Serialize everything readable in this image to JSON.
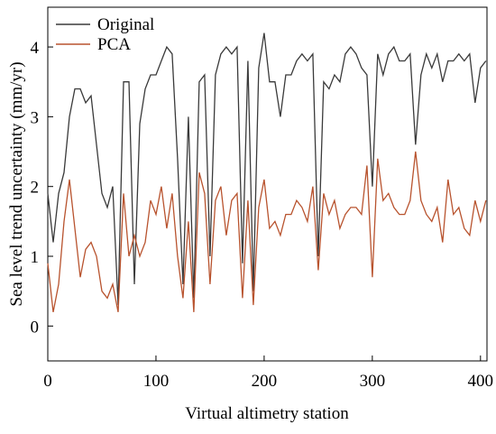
{
  "chart_data": {
    "type": "line",
    "xlabel": "Virtual altimetry station",
    "ylabel": "Sea level trend uncertainty (mm/yr)",
    "x": [
      0,
      5,
      10,
      15,
      20,
      25,
      30,
      35,
      40,
      45,
      50,
      55,
      60,
      65,
      70,
      75,
      80,
      85,
      90,
      95,
      100,
      105,
      110,
      115,
      120,
      125,
      130,
      135,
      140,
      145,
      150,
      155,
      160,
      165,
      170,
      175,
      180,
      185,
      190,
      195,
      200,
      205,
      210,
      215,
      220,
      225,
      230,
      235,
      240,
      245,
      250,
      255,
      260,
      265,
      270,
      275,
      280,
      285,
      290,
      295,
      300,
      305,
      310,
      315,
      320,
      325,
      330,
      335,
      340,
      345,
      350,
      355,
      360,
      365,
      370,
      375,
      380,
      385,
      390,
      395,
      400,
      405
    ],
    "series": [
      {
        "name": "Original",
        "color": "#3a3a3a",
        "values": [
          1.9,
          1.2,
          1.9,
          2.2,
          3.0,
          3.4,
          3.4,
          3.2,
          3.3,
          2.6,
          1.9,
          1.7,
          2.0,
          0.3,
          3.5,
          3.5,
          0.6,
          2.9,
          3.4,
          3.6,
          3.6,
          3.8,
          4.0,
          3.9,
          2.4,
          0.6,
          3.0,
          0.4,
          3.5,
          3.6,
          1.0,
          3.6,
          3.9,
          4.0,
          3.9,
          4.0,
          0.9,
          3.8,
          0.5,
          3.7,
          4.2,
          3.5,
          3.5,
          3.0,
          3.6,
          3.6,
          3.8,
          3.9,
          3.8,
          3.9,
          1.0,
          3.5,
          3.4,
          3.6,
          3.5,
          3.9,
          4.0,
          3.9,
          3.7,
          3.6,
          2.0,
          3.9,
          3.6,
          3.9,
          4.0,
          3.8,
          3.8,
          3.9,
          2.6,
          3.6,
          3.9,
          3.7,
          3.9,
          3.5,
          3.8,
          3.8,
          3.9,
          3.8,
          3.9,
          3.2,
          3.7,
          3.8
        ]
      },
      {
        "name": "PCA",
        "color": "#b8532e",
        "values": [
          0.9,
          0.2,
          0.6,
          1.5,
          2.1,
          1.4,
          0.7,
          1.1,
          1.2,
          1.0,
          0.5,
          0.4,
          0.6,
          0.2,
          1.9,
          1.0,
          1.3,
          1.0,
          1.2,
          1.8,
          1.6,
          2.0,
          1.4,
          1.9,
          1.0,
          0.4,
          1.5,
          0.2,
          2.2,
          1.9,
          0.6,
          1.8,
          2.0,
          1.3,
          1.8,
          1.9,
          0.4,
          1.8,
          0.3,
          1.7,
          2.1,
          1.4,
          1.5,
          1.3,
          1.6,
          1.6,
          1.8,
          1.7,
          1.5,
          2.0,
          0.8,
          1.9,
          1.6,
          1.8,
          1.4,
          1.6,
          1.7,
          1.7,
          1.6,
          2.3,
          0.7,
          2.4,
          1.8,
          1.9,
          1.7,
          1.6,
          1.6,
          1.8,
          2.5,
          1.8,
          1.6,
          1.5,
          1.7,
          1.2,
          2.1,
          1.6,
          1.7,
          1.4,
          1.3,
          1.8,
          1.5,
          1.8
        ]
      }
    ],
    "xlim": [
      0,
      406
    ],
    "xticks": [
      0,
      100,
      200,
      300,
      400
    ],
    "ylim": [
      -0.5,
      4.57
    ],
    "yticks": [
      0,
      1,
      2,
      3,
      4
    ],
    "legend": "upper left"
  }
}
